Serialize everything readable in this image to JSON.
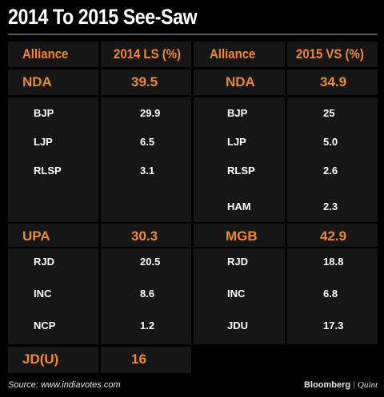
{
  "title": "2014 To 2015 See-Saw",
  "header": {
    "col1": "Alliance",
    "col2": "2014 LS (%)",
    "col3": "Alliance",
    "col4": "2015 VS (%)"
  },
  "colors": {
    "background": "#000000",
    "cell": "#161616",
    "accent": "#f08a24",
    "text": "#ffffff"
  },
  "chart_data": {
    "type": "table",
    "title": "2014 To 2015 See-Saw",
    "columns": [
      "Alliance",
      "2014 LS (%)",
      "Alliance",
      "2015 VS (%)"
    ],
    "ls2014": [
      {
        "alliance": "NDA",
        "value": "39.5",
        "parties": [
          {
            "party": "BJP",
            "value": "29.9"
          },
          {
            "party": "LJP",
            "value": "6.5"
          },
          {
            "party": "RLSP",
            "value": "3.1"
          }
        ]
      },
      {
        "alliance": "UPA",
        "value": "30.3",
        "parties": [
          {
            "party": "RJD",
            "value": "20.5"
          },
          {
            "party": "INC",
            "value": "8.6"
          },
          {
            "party": "NCP",
            "value": "1.2"
          }
        ]
      },
      {
        "alliance": "JD(U)",
        "value": "16",
        "parties": []
      }
    ],
    "vs2015": [
      {
        "alliance": "NDA",
        "value": "34.9",
        "parties": [
          {
            "party": "BJP",
            "value": "25"
          },
          {
            "party": "LJP",
            "value": "5.0"
          },
          {
            "party": "RLSP",
            "value": "2.6"
          },
          {
            "party": "HAM",
            "value": "2.3"
          }
        ]
      },
      {
        "alliance": "MGB",
        "value": "42.9",
        "parties": [
          {
            "party": "RJD",
            "value": "18.8"
          },
          {
            "party": "INC",
            "value": "6.8"
          },
          {
            "party": "JDU",
            "value": "17.3"
          }
        ]
      }
    ]
  },
  "footer": {
    "source": "Source: www.indiavotes.com",
    "brand_main": "Bloomberg",
    "brand_sep": "|",
    "brand_sub": "Quint"
  }
}
